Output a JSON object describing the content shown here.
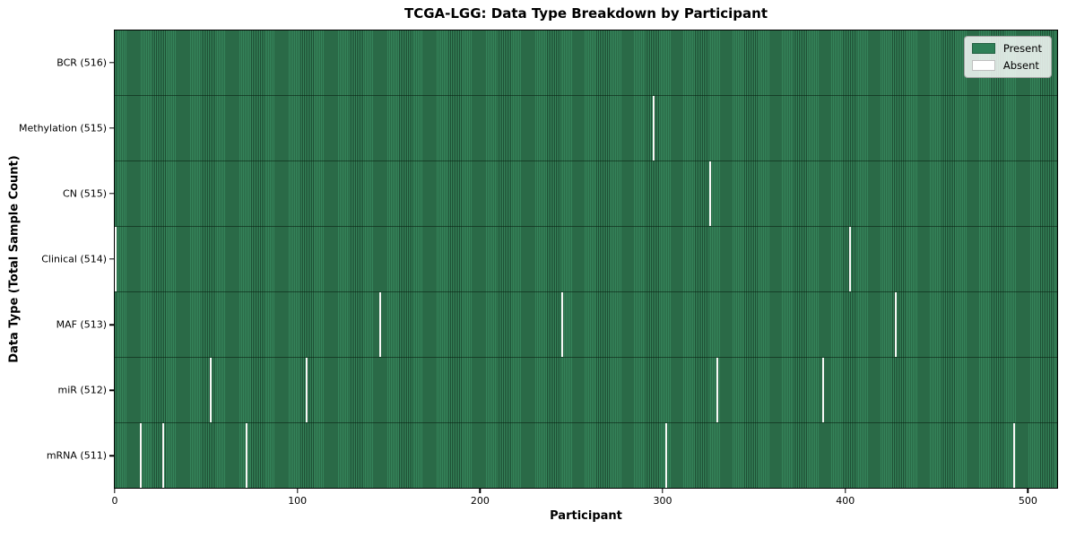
{
  "chart_data": {
    "type": "heatmap",
    "title": "TCGA-LGG: Data Type Breakdown by Participant",
    "xlabel": "Participant",
    "ylabel": "Data Type (Total Sample Count)",
    "n_participants": 516,
    "x_ticks": [
      0,
      100,
      200,
      300,
      400,
      500
    ],
    "x_range": [
      -0.5,
      516.5
    ],
    "grid": false,
    "legend_position": "upper right",
    "legend": [
      {
        "label": "Present",
        "color": "#2e8057"
      },
      {
        "label": "Absent",
        "color": "#ffffff"
      }
    ],
    "colors": {
      "present": "#35845a",
      "present_edge": "#1e4f34",
      "absent": "#f7f7f5",
      "legend_present_swatch": "#2e8057",
      "legend_absent_swatch": "#ffffff"
    },
    "rows": [
      {
        "label": "BCR (516)",
        "total": 516,
        "absent_participants": []
      },
      {
        "label": "Methylation (515)",
        "total": 515,
        "absent_participants": [
          295
        ]
      },
      {
        "label": "CN (515)",
        "total": 515,
        "absent_participants": [
          326
        ]
      },
      {
        "label": "Clinical (514)",
        "total": 514,
        "absent_participants": [
          0,
          403
        ]
      },
      {
        "label": "MAF (513)",
        "total": 513,
        "absent_participants": [
          145,
          245,
          428
        ]
      },
      {
        "label": "miR (512)",
        "total": 512,
        "absent_participants": [
          52,
          105,
          330,
          388
        ]
      },
      {
        "label": "mRNA (511)",
        "total": 511,
        "absent_participants": [
          14,
          26,
          72,
          302,
          493
        ]
      }
    ]
  }
}
